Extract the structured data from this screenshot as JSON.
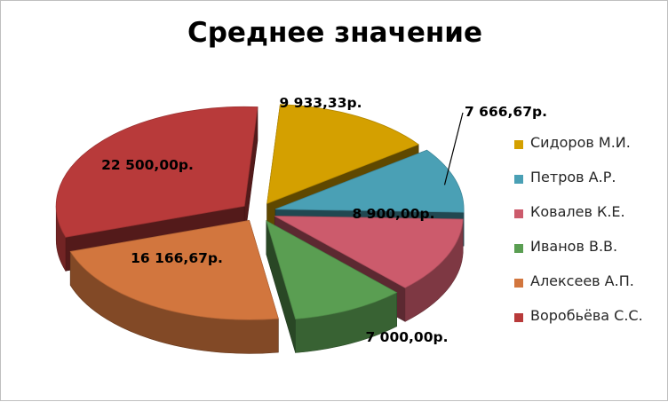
{
  "chart_data": {
    "type": "pie",
    "title": "Среднее значение",
    "legend_position": "right",
    "slices": [
      {
        "name": "Сидоров М.И.",
        "value": 9933.33,
        "label": "9 933,33р.",
        "color": "#d4a000"
      },
      {
        "name": "Петров А.Р.",
        "value": 7666.67,
        "label": "7 666,67р.",
        "color": "#4aa0b5"
      },
      {
        "name": "Ковалев К.Е.",
        "value": 8900.0,
        "label": "8 900,00р.",
        "color": "#cc5b6c"
      },
      {
        "name": "Иванов В.В.",
        "value": 7000.0,
        "label": "7 000,00р.",
        "color": "#5a9e52"
      },
      {
        "name": "Алексеев А.П.",
        "value": 16166.67,
        "label": "16 166,67р.",
        "color": "#d2763e"
      },
      {
        "name": "Воробьёва С.С.",
        "value": 22500.0,
        "label": "22 500,00р.",
        "color": "#b83a3a"
      }
    ]
  }
}
